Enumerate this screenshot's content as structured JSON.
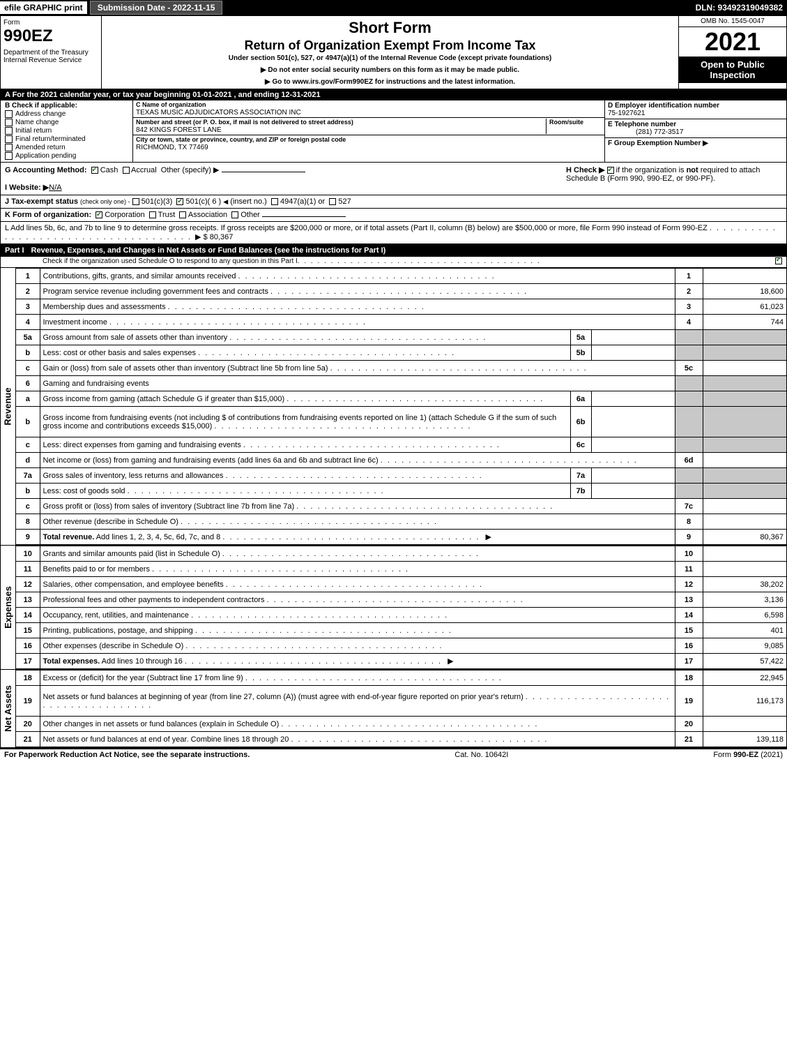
{
  "top": {
    "efile": "efile GRAPHIC print",
    "submission": "Submission Date - 2022-11-15",
    "dln": "DLN: 93492319049382"
  },
  "header": {
    "form_label": "Form",
    "form_number": "990EZ",
    "department": "Department of the Treasury\nInternal Revenue Service",
    "short_form": "Short Form",
    "title": "Return of Organization Exempt From Income Tax",
    "under": "Under section 501(c), 527, or 4947(a)(1) of the Internal Revenue Code (except private foundations)",
    "warn": "▶ Do not enter social security numbers on this form as it may be made public.",
    "goto": "▶ Go to www.irs.gov/Form990EZ for instructions and the latest information.",
    "omb": "OMB No. 1545-0047",
    "year": "2021",
    "open": "Open to Public Inspection"
  },
  "A": "A  For the 2021 calendar year, or tax year beginning 01-01-2021 , and ending 12-31-2021",
  "B": {
    "label": "B  Check if applicable:",
    "items": [
      "Address change",
      "Name change",
      "Initial return",
      "Final return/terminated",
      "Amended return",
      "Application pending"
    ]
  },
  "C": {
    "name_lbl": "C Name of organization",
    "name": "TEXAS MUSIC ADJUDICATORS ASSOCIATION INC",
    "addr_lbl": "Number and street (or P. O. box, if mail is not delivered to street address)",
    "room_lbl": "Room/suite",
    "addr": "842 KINGS FOREST LANE",
    "city_lbl": "City or town, state or province, country, and ZIP or foreign postal code",
    "city": "RICHMOND, TX  77469"
  },
  "D": {
    "lbl": "D Employer identification number",
    "val": "75-1927621"
  },
  "E": {
    "lbl": "E Telephone number",
    "val": "(281) 772-3517"
  },
  "F": {
    "lbl": "F Group Exemption Number  ▶",
    "val": ""
  },
  "G": {
    "label": "G Accounting Method:",
    "cash": "Cash",
    "accrual": "Accrual",
    "other": "Other (specify) ▶"
  },
  "H": {
    "label": "H  Check ▶",
    "text": "if the organization is not required to attach Schedule B (Form 990, 990-EZ, or 990-PF).",
    "not_word": "not"
  },
  "I": {
    "lbl": "I Website: ▶",
    "val": "N/A"
  },
  "J": {
    "lbl": "J Tax-exempt status",
    "sub": "(check only one) -",
    "opts": "501(c)(3)   ☑ 501(c)( 6 ) ◀ (insert no.)   4947(a)(1) or   527"
  },
  "K": {
    "lbl": "K Form of organization:",
    "opts": "☑ Corporation   Trust   Association   Other"
  },
  "L": {
    "text": "L Add lines 5b, 6c, and 7b to line 9 to determine gross receipts. If gross receipts are $200,000 or more, or if total assets (Part II, column (B) below) are $500,000 or more, file Form 990 instead of Form 990-EZ",
    "amount": "▶ $ 80,367"
  },
  "part1": {
    "label": "Part I",
    "title": "Revenue, Expenses, and Changes in Net Assets or Fund Balances (see the instructions for Part I)",
    "sub": "Check if the organization used Schedule O to respond to any question in this Part I"
  },
  "revenue": {
    "label": "Revenue",
    "rows": [
      {
        "n": "1",
        "d": "Contributions, gifts, grants, and similar amounts received",
        "rn": "1",
        "rv": ""
      },
      {
        "n": "2",
        "d": "Program service revenue including government fees and contracts",
        "rn": "2",
        "rv": "18,600"
      },
      {
        "n": "3",
        "d": "Membership dues and assessments",
        "rn": "3",
        "rv": "61,023"
      },
      {
        "n": "4",
        "d": "Investment income",
        "rn": "4",
        "rv": "744"
      },
      {
        "n": "5a",
        "d": "Gross amount from sale of assets other than inventory",
        "mn": "5a",
        "mv": "",
        "grey": true
      },
      {
        "n": "b",
        "d": "Less: cost or other basis and sales expenses",
        "mn": "5b",
        "mv": "",
        "grey": true
      },
      {
        "n": "c",
        "d": "Gain or (loss) from sale of assets other than inventory (Subtract line 5b from line 5a)",
        "rn": "5c",
        "rv": ""
      },
      {
        "n": "6",
        "d": "Gaming and fundraising events",
        "nobox": true
      },
      {
        "n": "a",
        "d": "Gross income from gaming (attach Schedule G if greater than $15,000)",
        "mn": "6a",
        "mv": "",
        "grey": true
      },
      {
        "n": "b",
        "d": "Gross income from fundraising events (not including $                    of contributions from fundraising events reported on line 1) (attach Schedule G if the sum of such gross income and contributions exceeds $15,000)",
        "mn": "6b",
        "mv": "",
        "grey": true,
        "tall": true
      },
      {
        "n": "c",
        "d": "Less: direct expenses from gaming and fundraising events",
        "mn": "6c",
        "mv": "",
        "grey": true
      },
      {
        "n": "d",
        "d": "Net income or (loss) from gaming and fundraising events (add lines 6a and 6b and subtract line 6c)",
        "rn": "6d",
        "rv": ""
      },
      {
        "n": "7a",
        "d": "Gross sales of inventory, less returns and allowances",
        "mn": "7a",
        "mv": "",
        "grey": true
      },
      {
        "n": "b",
        "d": "Less: cost of goods sold",
        "mn": "7b",
        "mv": "",
        "grey": true
      },
      {
        "n": "c",
        "d": "Gross profit or (loss) from sales of inventory (Subtract line 7b from line 7a)",
        "rn": "7c",
        "rv": ""
      },
      {
        "n": "8",
        "d": "Other revenue (describe in Schedule O)",
        "rn": "8",
        "rv": ""
      },
      {
        "n": "9",
        "d": "Total revenue. Add lines 1, 2, 3, 4, 5c, 6d, 7c, and 8",
        "rn": "9",
        "rv": "80,367",
        "bold": true,
        "arrow": true
      }
    ]
  },
  "expenses": {
    "label": "Expenses",
    "rows": [
      {
        "n": "10",
        "d": "Grants and similar amounts paid (list in Schedule O)",
        "rn": "10",
        "rv": ""
      },
      {
        "n": "11",
        "d": "Benefits paid to or for members",
        "rn": "11",
        "rv": ""
      },
      {
        "n": "12",
        "d": "Salaries, other compensation, and employee benefits",
        "rn": "12",
        "rv": "38,202"
      },
      {
        "n": "13",
        "d": "Professional fees and other payments to independent contractors",
        "rn": "13",
        "rv": "3,136"
      },
      {
        "n": "14",
        "d": "Occupancy, rent, utilities, and maintenance",
        "rn": "14",
        "rv": "6,598"
      },
      {
        "n": "15",
        "d": "Printing, publications, postage, and shipping",
        "rn": "15",
        "rv": "401"
      },
      {
        "n": "16",
        "d": "Other expenses (describe in Schedule O)",
        "rn": "16",
        "rv": "9,085"
      },
      {
        "n": "17",
        "d": "Total expenses. Add lines 10 through 16",
        "rn": "17",
        "rv": "57,422",
        "bold": true,
        "arrow": true
      }
    ]
  },
  "netassets": {
    "label": "Net Assets",
    "rows": [
      {
        "n": "18",
        "d": "Excess or (deficit) for the year (Subtract line 17 from line 9)",
        "rn": "18",
        "rv": "22,945"
      },
      {
        "n": "19",
        "d": "Net assets or fund balances at beginning of year (from line 27, column (A)) (must agree with end-of-year figure reported on prior year's return)",
        "rn": "19",
        "rv": "116,173",
        "tall": true
      },
      {
        "n": "20",
        "d": "Other changes in net assets or fund balances (explain in Schedule O)",
        "rn": "20",
        "rv": ""
      },
      {
        "n": "21",
        "d": "Net assets or fund balances at end of year. Combine lines 18 through 20",
        "rn": "21",
        "rv": "139,118"
      }
    ]
  },
  "footer": {
    "left": "For Paperwork Reduction Act Notice, see the separate instructions.",
    "mid": "Cat. No. 10642I",
    "right": "Form 990-EZ (2021)"
  }
}
